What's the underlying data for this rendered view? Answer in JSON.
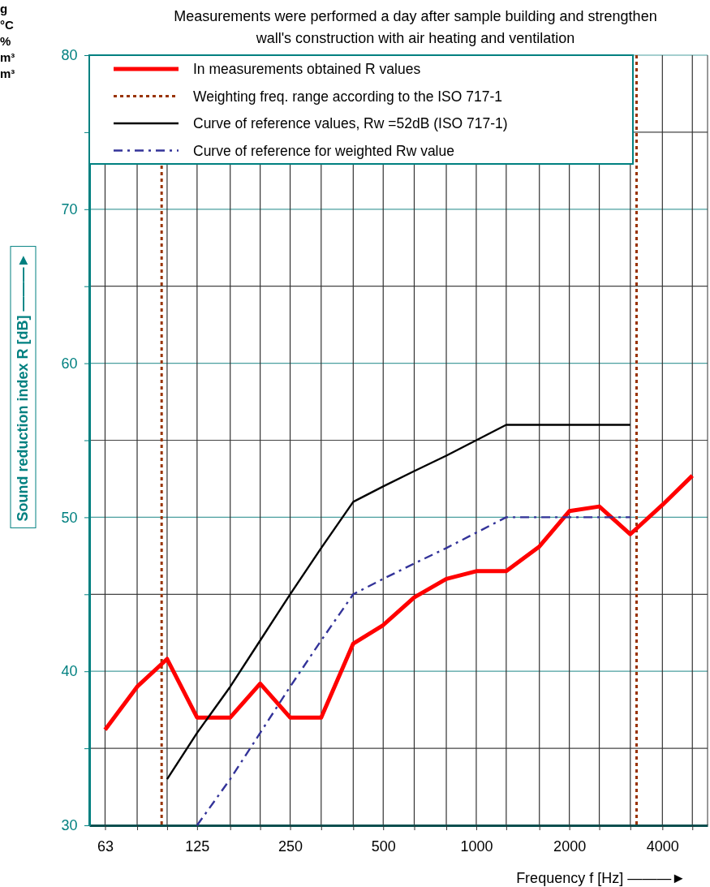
{
  "chart_data": {
    "type": "line",
    "title": "Measurements were performed a day after sample building and strengthen wall's construction with air heating and ventilation",
    "xlabel": "Frequency  f [Hz]  ———►",
    "ylabel": "Sound reduction index R [dB]  ———►",
    "x": [
      63,
      80,
      100,
      125,
      160,
      200,
      250,
      315,
      400,
      500,
      630,
      800,
      1000,
      1250,
      1600,
      2000,
      2500,
      3150,
      4000,
      5000
    ],
    "log": "x",
    "xlim": [
      56,
      5600
    ],
    "xticks": [
      63,
      {
        "value": 80,
        "label": null
      },
      {
        "value": 100,
        "label": null
      },
      125,
      {
        "value": 160,
        "label": null
      },
      {
        "value": 200,
        "label": null
      },
      250,
      {
        "value": 315,
        "label": null
      },
      {
        "value": 400,
        "label": null
      },
      500,
      {
        "value": 630,
        "label": null
      },
      {
        "value": 800,
        "label": null
      },
      1000,
      {
        "value": 1250,
        "label": null
      },
      {
        "value": 1600,
        "label": null
      },
      2000,
      {
        "value": 2500,
        "label": null
      },
      {
        "value": 3150,
        "label": null
      },
      4000,
      {
        "value": 5000,
        "label": null
      }
    ],
    "ylim": [
      30,
      80
    ],
    "yticks": [
      30,
      {
        "value": 35,
        "label": null
      },
      40,
      {
        "value": 45,
        "label": null
      },
      50,
      {
        "value": 55,
        "label": null
      },
      60,
      {
        "value": 65,
        "label": null
      },
      70,
      {
        "value": 75,
        "label": null
      },
      80
    ],
    "grid": true,
    "legend": "top",
    "marker": "none",
    "series": [
      {
        "name": "In measurements obtained R values",
        "color": "#ff0000",
        "line_style": "solid",
        "values": [
          36.2,
          39.0,
          40.8,
          37.0,
          37.0,
          39.2,
          37.0,
          37.0,
          41.8,
          43.0,
          44.8,
          46.0,
          46.5,
          46.5,
          48.1,
          50.4,
          50.7,
          48.9,
          50.8,
          52.7
        ]
      },
      {
        "name": "Curve of reference values,  Rw =52dB  (ISO 717-1)",
        "color": "#000000",
        "line_style": "solid",
        "values": [
          null,
          null,
          33,
          36,
          39,
          42,
          45,
          48,
          51,
          52,
          53,
          54,
          55,
          56,
          56,
          56,
          56,
          56,
          null,
          null
        ]
      },
      {
        "name": "Curve of reference for weighted  Rw value",
        "color": "#333399",
        "line_style": "dashed",
        "values": [
          null,
          null,
          null,
          30,
          33,
          36,
          39,
          42,
          45,
          46,
          47,
          48,
          49,
          50,
          50,
          50,
          50,
          50,
          null,
          null
        ]
      }
    ],
    "ref_lines": [
      {
        "axis": "x",
        "value": 96,
        "label": "Weighting freq. range according to the ISO 717-1",
        "color": "#993300",
        "line_style": "dotted"
      },
      {
        "axis": "x",
        "value": 3300,
        "color": "#993300",
        "line_style": "dotted"
      }
    ],
    "annotations": [
      "g",
      "°C",
      "%",
      "m³",
      "m³"
    ]
  }
}
